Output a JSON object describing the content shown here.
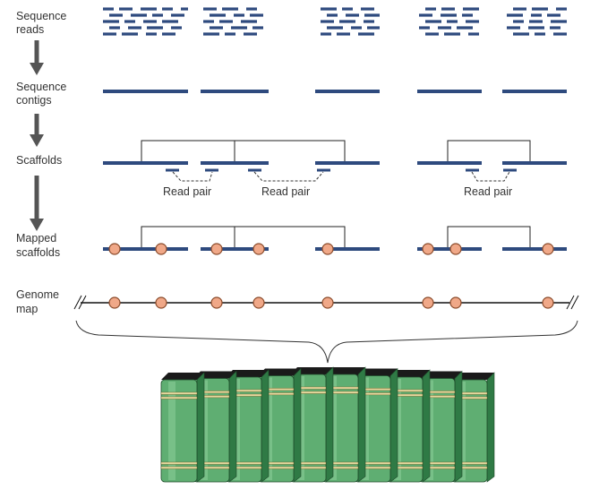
{
  "stages": [
    {
      "id": "reads",
      "line1": "Sequence",
      "line2": "reads"
    },
    {
      "id": "contigs",
      "line1": "Sequence",
      "line2": "contigs"
    },
    {
      "id": "scaffolds",
      "line1": "Scaffolds",
      "line2": ""
    },
    {
      "id": "mapped",
      "line1": "Mapped",
      "line2": "scaffolds"
    },
    {
      "id": "genome",
      "line1": "Genome",
      "line2": "map"
    }
  ],
  "read_pair_labels": [
    "Read pair",
    "Read pair",
    "Read pair"
  ],
  "colors": {
    "contig": "#2e4a7e",
    "marker_fill": "#f0a888",
    "marker_stroke": "#8a4a2a",
    "book_green": "#5fae72",
    "book_dark": "#2f7a45",
    "book_band": "#e8d9a0",
    "arrow": "#555555"
  }
}
